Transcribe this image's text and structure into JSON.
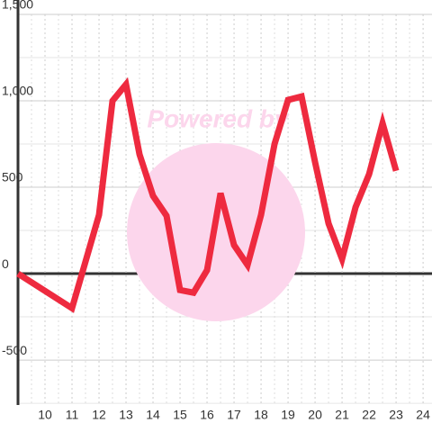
{
  "chart_data": {
    "type": "line",
    "watermark": "Powered by",
    "x": [
      9,
      11,
      12,
      12.5,
      13,
      13.5,
      14,
      14.5,
      15,
      15.5,
      16,
      16.5,
      17,
      17.5,
      18,
      18.5,
      19,
      19.5,
      20,
      20.5,
      21,
      21.5,
      22,
      22.5,
      23
    ],
    "series": [
      {
        "color": "#ee2a3f",
        "values": [
          0,
          -200,
          340,
          1000,
          1095,
          690,
          450,
          335,
          -95,
          -110,
          20,
          465,
          165,
          50,
          340,
          750,
          1005,
          1025,
          645,
          290,
          85,
          385,
          575,
          870,
          595
        ]
      }
    ],
    "xlim": [
      9,
      24.33
    ],
    "xticks": [
      10,
      11,
      12,
      13,
      14,
      15,
      16,
      17,
      18,
      19,
      20,
      21,
      22,
      23,
      24
    ],
    "ylim": [
      -760,
      1500
    ],
    "yticks": [
      -500,
      0,
      500,
      {
        "value": 1000,
        "label": "1,000"
      },
      {
        "value": 1500,
        "label": "1,500"
      }
    ],
    "grid": true
  }
}
